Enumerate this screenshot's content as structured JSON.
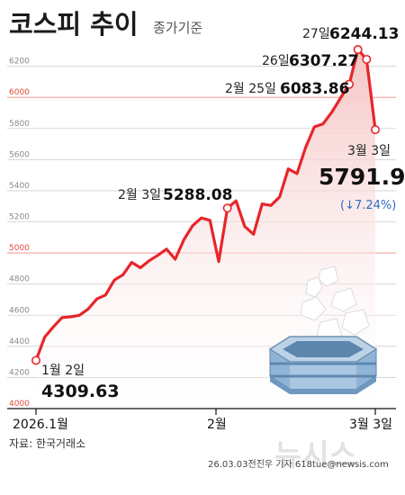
{
  "header": {
    "title": "코스피 추이",
    "subtitle": "종가기준"
  },
  "source": "자료: 한국거래소",
  "credit": "26.03.03전진우 기자 618tue@newsis.com",
  "watermark": "뉴시스",
  "colors": {
    "line": "#e6262b",
    "area_top": "#f7cfcf",
    "area_bottom": "#ffffff",
    "grid": "#cfcfcf",
    "grid_red": "#ef8a80",
    "down": "#2b6cc4"
  },
  "annotations": {
    "start": {
      "date": "1월 2일",
      "value": "4309.63"
    },
    "feb3": {
      "date": "2월 3일",
      "value": "5288.08"
    },
    "feb25": {
      "date": "2월 25일",
      "value": "6083.86"
    },
    "feb26": {
      "date": "26일",
      "value": "6307.27"
    },
    "feb27": {
      "date": "27일",
      "value": "6244.13"
    },
    "mar3": {
      "date": "3월 3일",
      "value": "5791.91",
      "change": "(↓7.24%)"
    }
  },
  "chart_data": {
    "type": "line",
    "title": "코스피 추이",
    "subtitle": "종가기준",
    "xlabel": "",
    "ylabel": "",
    "ylim": [
      4000,
      6400
    ],
    "yticks": [
      4000,
      4200,
      4400,
      4600,
      4800,
      5000,
      5200,
      5400,
      5600,
      5800,
      6000,
      6200
    ],
    "highlighted_yticks": [
      4000,
      5000,
      6000
    ],
    "xtick_labels": [
      "2026.1월",
      "2월",
      "3월 3일"
    ],
    "grid": true,
    "series": [
      {
        "values": [
          4309.63,
          4460,
          4525,
          4585,
          4590,
          4600,
          4640,
          4705,
          4730,
          4825,
          4860,
          4940,
          4905,
          4950,
          4985,
          5025,
          4960,
          5085,
          5175,
          5225,
          5210,
          4945,
          5288.08,
          5335,
          5170,
          5120,
          5315,
          5305,
          5360,
          5540,
          5510,
          5680,
          5810,
          5830,
          5905,
          5995,
          6083.86,
          6307.27,
          6244.13,
          5791.91
        ]
      }
    ]
  }
}
